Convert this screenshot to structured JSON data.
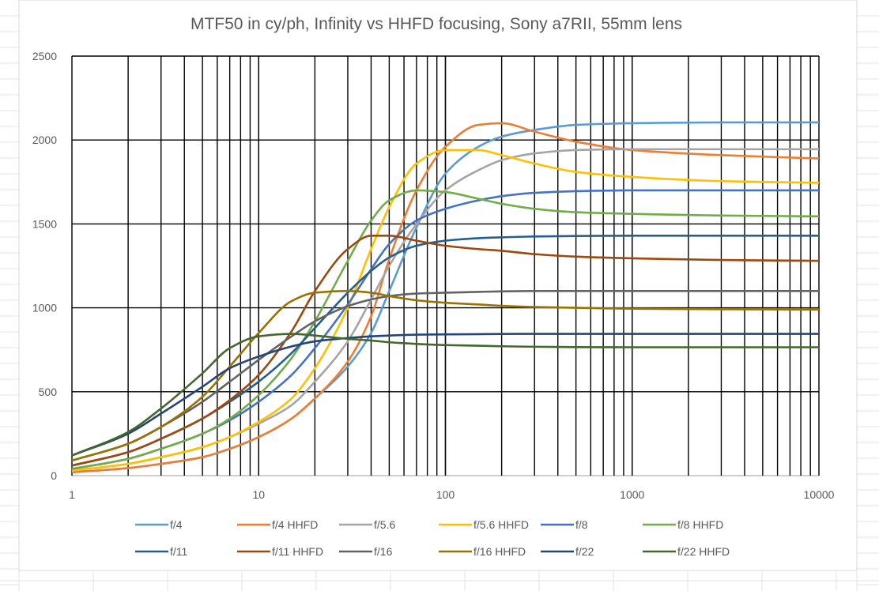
{
  "window": {
    "frame_color": "#d9d9d9",
    "sheet_grid_color": "#e3e3e3"
  },
  "chart_data": {
    "type": "line",
    "title": "MTF50 in cy/ph, Infinity vs HHFD focusing, Sony a7RII, 55mm lens",
    "xlabel": "",
    "ylabel": "",
    "xscale": "log",
    "xlim": [
      1,
      10000
    ],
    "ylim": [
      0,
      2500
    ],
    "x_ticks": [
      1,
      10,
      100,
      1000,
      10000
    ],
    "y_ticks": [
      0,
      500,
      1000,
      1500,
      2000,
      2500
    ],
    "x_tick_labels": [
      "1",
      "10",
      "100",
      "1000",
      "10000"
    ],
    "y_tick_labels": [
      "0",
      "500",
      "1000",
      "1500",
      "2000",
      "2500"
    ],
    "grid": true,
    "legend_position": "bottom",
    "x": [
      1,
      2,
      3,
      5,
      7,
      10,
      15,
      20,
      30,
      40,
      50,
      70,
      100,
      150,
      200,
      300,
      500,
      1000,
      3000,
      10000
    ],
    "series": [
      {
        "name": "f/4",
        "color": "#5b9bd5",
        "values": [
          20,
          45,
          70,
          110,
          160,
          230,
          340,
          460,
          650,
          850,
          1100,
          1480,
          1800,
          1960,
          2020,
          2060,
          2090,
          2100,
          2105,
          2105
        ]
      },
      {
        "name": "f/4 HHFD",
        "color": "#ed7d31",
        "values": [
          20,
          45,
          70,
          110,
          160,
          230,
          340,
          460,
          680,
          950,
          1290,
          1700,
          1960,
          2090,
          2100,
          2050,
          1990,
          1940,
          1910,
          1890
        ]
      },
      {
        "name": "f/5.6",
        "color": "#a5a5a5",
        "values": [
          30,
          70,
          110,
          170,
          230,
          310,
          420,
          560,
          800,
          1050,
          1250,
          1500,
          1700,
          1820,
          1880,
          1920,
          1940,
          1945,
          1945,
          1945
        ]
      },
      {
        "name": "f/5.6 HHFD",
        "color": "#ffc000",
        "values": [
          30,
          70,
          110,
          170,
          230,
          320,
          460,
          640,
          1000,
          1350,
          1600,
          1860,
          1940,
          1940,
          1910,
          1860,
          1810,
          1780,
          1755,
          1745
        ]
      },
      {
        "name": "f/8",
        "color": "#4472c4",
        "values": [
          40,
          100,
          160,
          250,
          330,
          440,
          600,
          760,
          1020,
          1230,
          1380,
          1520,
          1590,
          1640,
          1665,
          1685,
          1695,
          1700,
          1700,
          1700
        ]
      },
      {
        "name": "f/8 HHFD",
        "color": "#70ad47",
        "values": [
          40,
          100,
          160,
          250,
          340,
          480,
          700,
          920,
          1280,
          1520,
          1640,
          1700,
          1690,
          1650,
          1620,
          1590,
          1570,
          1560,
          1550,
          1545
        ]
      },
      {
        "name": "f/11",
        "color": "#255e91",
        "values": [
          60,
          140,
          220,
          340,
          440,
          560,
          730,
          880,
          1090,
          1220,
          1300,
          1370,
          1400,
          1415,
          1420,
          1425,
          1428,
          1430,
          1430,
          1430
        ]
      },
      {
        "name": "f/11 HHFD",
        "color": "#9e480e",
        "values": [
          60,
          140,
          220,
          340,
          450,
          600,
          860,
          1100,
          1350,
          1430,
          1430,
          1400,
          1370,
          1350,
          1340,
          1320,
          1305,
          1295,
          1285,
          1280
        ]
      },
      {
        "name": "f/16",
        "color": "#636363",
        "values": [
          90,
          190,
          290,
          440,
          560,
          690,
          830,
          920,
          1010,
          1050,
          1070,
          1085,
          1090,
          1095,
          1098,
          1100,
          1100,
          1100,
          1100,
          1100
        ]
      },
      {
        "name": "f/16 HHFD",
        "color": "#997300",
        "values": [
          90,
          190,
          290,
          470,
          650,
          850,
          1040,
          1090,
          1100,
          1090,
          1070,
          1045,
          1030,
          1020,
          1012,
          1005,
          1000,
          995,
          992,
          990
        ]
      },
      {
        "name": "f/22",
        "color": "#264478",
        "values": [
          120,
          250,
          370,
          530,
          640,
          710,
          770,
          800,
          820,
          830,
          835,
          840,
          842,
          843,
          844,
          845,
          845,
          845,
          845,
          845
        ]
      },
      {
        "name": "f/22 HHFD",
        "color": "#43682b",
        "values": [
          120,
          260,
          400,
          610,
          760,
          830,
          845,
          835,
          815,
          805,
          795,
          785,
          778,
          774,
          771,
          768,
          766,
          765,
          765,
          765
        ]
      }
    ]
  }
}
